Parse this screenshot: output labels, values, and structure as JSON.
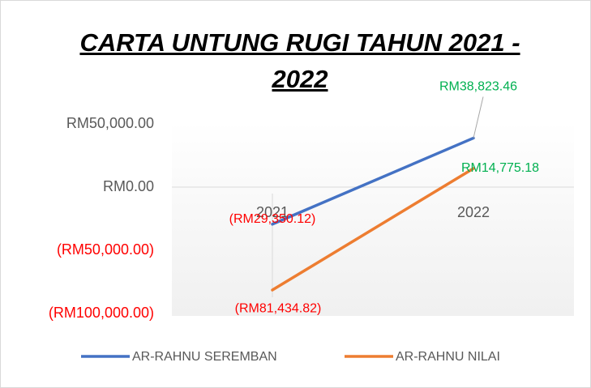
{
  "chart_data": {
    "type": "line",
    "title": "CARTA UNTUNG RUGI TAHUN 2021 - 2022",
    "categories": [
      "2021",
      "2022"
    ],
    "series": [
      {
        "name": "AR-RAHNU SEREMBAN",
        "color": "#4472c4",
        "values": [
          -29350.12,
          38823.46
        ],
        "value_labels": [
          "(RM29,350.12)",
          "RM38,823.46"
        ]
      },
      {
        "name": "AR-RAHNU NILAI",
        "color": "#ed7d31",
        "values": [
          -81434.82,
          14775.18
        ],
        "value_labels": [
          "(RM81,434.82)",
          "RM14,775.18"
        ]
      }
    ],
    "ylim": [
      -100000,
      50000
    ],
    "yticks": [
      {
        "value": -100000,
        "label": "(RM100,000.00)"
      },
      {
        "value": -50000,
        "label": "(RM50,000.00)"
      },
      {
        "value": 0,
        "label": "RM0.00"
      },
      {
        "value": 50000,
        "label": "RM50,000.00"
      }
    ],
    "legend": "bottom"
  }
}
